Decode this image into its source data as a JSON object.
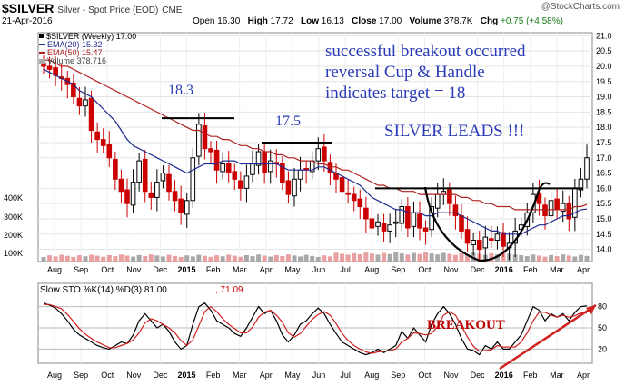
{
  "header": {
    "symbol": "$SILVER",
    "desc": "Silver - Spot Price (EOD)",
    "exchange": "CME",
    "date": "21-Apr-2016",
    "watermark": "@StockCharts.com",
    "open_label": "Open",
    "open": "16.30",
    "high_label": "High",
    "high": "17.72",
    "low_label": "Low",
    "low": "16.13",
    "close_label": "Close",
    "close": "17.00",
    "volume_label": "Volume",
    "volume": "378.7K",
    "chg_label": "Chg",
    "chg": "+0.75 (+4.58%)"
  },
  "legend": {
    "main": "$SILVER (Weekly) 17.00",
    "ema20": "EMA(20) 15.32",
    "ema50": "EMA(50) 15.47",
    "volume": "Volume 378,716"
  },
  "annotations": {
    "line1": "successful breakout occurred",
    "line2": "reversal Cup & Handle",
    "line3": "indicates target = 18",
    "line4": "SILVER LEADS !!!",
    "peak1": "18.3",
    "peak2": "17.5",
    "breakout": "BREAKOUT"
  },
  "colors": {
    "up": "#000000",
    "down": "#cc0000",
    "ema20": "#1f2a8f",
    "ema50": "#b02020",
    "annotation": "#2a3bb5",
    "vol_up": "#a9a9a9",
    "vol_down": "#e8a0a0"
  },
  "chart_data": [
    {
      "type": "candlestick",
      "title": "$SILVER (Weekly)",
      "y_ticks": [
        "21.0",
        "20.5",
        "20.0",
        "19.5",
        "19.0",
        "18.5",
        "18.0",
        "17.5",
        "17.0",
        "16.5",
        "16.0",
        "15.5",
        "15.0",
        "14.5",
        "14.0"
      ],
      "ylim": [
        13.6,
        21.1
      ],
      "x_ticks": [
        "Aug",
        "Sep",
        "Oct",
        "Nov",
        "Dec",
        "2015",
        "Feb",
        "Mar",
        "Apr",
        "May",
        "Jun",
        "Jul",
        "Aug",
        "Sep",
        "Oct",
        "Nov",
        "Dec",
        "2016",
        "Feb",
        "Mar",
        "Apr"
      ],
      "close": [
        20.0,
        19.9,
        19.7,
        19.6,
        19.4,
        19.0,
        18.7,
        18.9,
        17.9,
        17.6,
        17.4,
        17.0,
        16.3,
        15.9,
        15.5,
        16.2,
        16.9,
        15.9,
        15.7,
        16.2,
        16.5,
        15.9,
        15.6,
        15.2,
        15.6,
        17.0,
        18.1,
        17.3,
        17.2,
        16.6,
        16.8,
        16.5,
        16.3,
        16.0,
        16.4,
        16.8,
        17.2,
        16.5,
        16.9,
        16.8,
        16.2,
        15.8,
        16.3,
        16.6,
        16.6,
        16.9,
        17.3,
        16.9,
        16.5,
        16.3,
        15.9,
        15.8,
        15.6,
        15.4,
        15.0,
        14.7,
        14.9,
        14.6,
        14.8,
        14.9,
        15.4,
        14.7,
        15.2,
        14.7,
        14.6,
        15.4,
        15.8,
        15.9,
        15.5,
        15.1,
        14.6,
        14.2,
        14.3,
        14.0,
        14.4,
        14.3,
        14.5,
        14.1,
        14.2,
        14.6,
        14.8,
        15.2,
        15.8,
        15.5,
        15.1,
        15.6,
        15.3,
        15.5,
        15.0,
        16.0,
        16.3,
        17.0
      ],
      "series": [
        {
          "name": "EMA(20)",
          "values": [
            19.9,
            19.8,
            19.7,
            19.6,
            19.5,
            19.4,
            19.2,
            19.1,
            19.0,
            18.8,
            18.6,
            18.4,
            18.2,
            17.9,
            17.6,
            17.4,
            17.3,
            17.2,
            17.1,
            17.0,
            16.9,
            16.8,
            16.7,
            16.6,
            16.5,
            16.6,
            16.7,
            16.8,
            16.8,
            16.8,
            16.9,
            16.9,
            16.9,
            16.8,
            16.8,
            16.8,
            16.8,
            16.8,
            16.8,
            16.8,
            16.7,
            16.6,
            16.6,
            16.6,
            16.6,
            16.6,
            16.7,
            16.7,
            16.6,
            16.5,
            16.4,
            16.3,
            16.2,
            16.1,
            15.9,
            15.7,
            15.6,
            15.5,
            15.4,
            15.3,
            15.3,
            15.2,
            15.2,
            15.2,
            15.1,
            15.1,
            15.2,
            15.2,
            15.2,
            15.2,
            15.1,
            15.0,
            14.9,
            14.8,
            14.7,
            14.6,
            14.6,
            14.5,
            14.5,
            14.5,
            14.5,
            14.6,
            14.7,
            14.8,
            14.8,
            14.9,
            15.0,
            15.1,
            15.1,
            15.2,
            15.3,
            15.32
          ]
        },
        {
          "name": "EMA(50)",
          "values": [
            20.2,
            20.2,
            20.1,
            20.0,
            20.0,
            19.9,
            19.8,
            19.7,
            19.6,
            19.5,
            19.4,
            19.3,
            19.2,
            19.1,
            19.0,
            18.9,
            18.8,
            18.7,
            18.6,
            18.5,
            18.4,
            18.3,
            18.2,
            18.1,
            18.0,
            17.9,
            17.9,
            17.8,
            17.7,
            17.7,
            17.6,
            17.6,
            17.5,
            17.4,
            17.4,
            17.3,
            17.3,
            17.2,
            17.2,
            17.1,
            17.1,
            17.0,
            17.0,
            16.9,
            16.9,
            16.9,
            16.8,
            16.8,
            16.7,
            16.7,
            16.6,
            16.6,
            16.5,
            16.4,
            16.3,
            16.2,
            16.1,
            16.1,
            16.0,
            16.0,
            15.9,
            15.9,
            15.9,
            15.8,
            15.8,
            15.8,
            15.8,
            15.8,
            15.8,
            15.8,
            15.7,
            15.7,
            15.6,
            15.6,
            15.5,
            15.5,
            15.4,
            15.4,
            15.4,
            15.3,
            15.3,
            15.3,
            15.3,
            15.3,
            15.3,
            15.3,
            15.3,
            15.3,
            15.3,
            15.4,
            15.4,
            15.47
          ]
        }
      ],
      "levels": [
        {
          "value": 18.3,
          "label": "18.3"
        },
        {
          "value": 17.5,
          "label": "17.5"
        },
        {
          "value": 16.0,
          "label": ""
        }
      ]
    },
    {
      "type": "bar",
      "title": "Volume",
      "y_ticks": [
        "400K",
        "300K",
        "200K",
        "100K"
      ],
      "ylim": [
        0,
        500
      ]
    },
    {
      "type": "line",
      "title": "Slow STO %K(14) %D(3) 81.00, 71.09",
      "y_ticks": [
        "80",
        "50",
        "20"
      ],
      "ylim": [
        0,
        100
      ],
      "x_ticks": [
        "Aug",
        "Sep",
        "Oct",
        "Nov",
        "Dec",
        "2016",
        "Feb",
        "Mar",
        "Apr"
      ],
      "series": [
        {
          "name": "%K",
          "values": [
            85,
            82,
            78,
            70,
            60,
            48,
            40,
            35,
            30,
            25,
            22,
            20,
            25,
            30,
            28,
            40,
            60,
            70,
            60,
            50,
            55,
            45,
            30,
            20,
            25,
            55,
            80,
            85,
            75,
            60,
            55,
            50,
            42,
            38,
            50,
            65,
            80,
            70,
            75,
            60,
            40,
            30,
            40,
            55,
            60,
            70,
            78,
            70,
            55,
            42,
            30,
            25,
            20,
            15,
            12,
            15,
            20,
            15,
            20,
            25,
            45,
            35,
            50,
            40,
            30,
            55,
            70,
            80,
            70,
            55,
            35,
            20,
            18,
            12,
            25,
            20,
            30,
            20,
            20,
            30,
            40,
            60,
            80,
            75,
            60,
            70,
            65,
            70,
            60,
            72,
            80,
            81
          ]
        },
        {
          "name": "%D",
          "values": [
            83,
            83,
            80,
            77,
            69,
            59,
            49,
            41,
            35,
            30,
            26,
            22,
            22,
            25,
            28,
            33,
            43,
            57,
            63,
            60,
            55,
            50,
            43,
            32,
            25,
            33,
            53,
            73,
            80,
            73,
            63,
            55,
            49,
            43,
            43,
            51,
            65,
            72,
            75,
            68,
            58,
            43,
            37,
            42,
            52,
            62,
            69,
            73,
            68,
            56,
            42,
            32,
            25,
            20,
            16,
            14,
            16,
            17,
            18,
            20,
            30,
            35,
            43,
            42,
            40,
            42,
            52,
            68,
            73,
            68,
            53,
            37,
            24,
            17,
            18,
            19,
            25,
            23,
            23,
            23,
            30,
            43,
            60,
            72,
            72,
            68,
            65,
            68,
            65,
            67,
            71,
            71.09
          ]
        }
      ],
      "legend_values": {
        "k": "81.00",
        "d": "71.09"
      }
    }
  ]
}
